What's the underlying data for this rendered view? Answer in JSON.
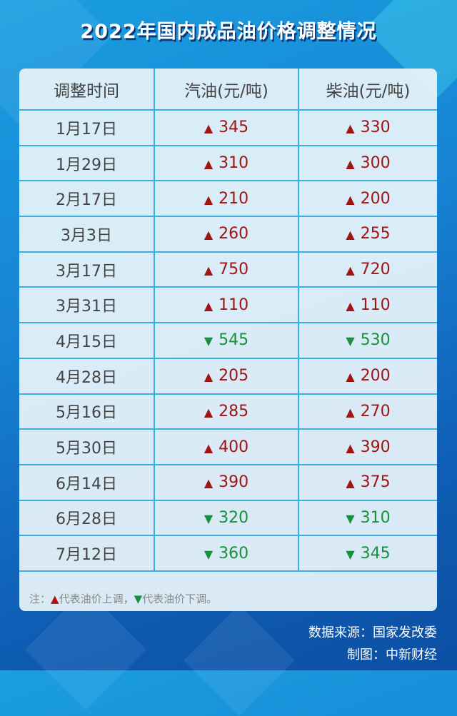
{
  "title": "2022年国内成品油价格调整情况",
  "colors": {
    "up": "#a11414",
    "down": "#17913d",
    "grid": "#38b1e0"
  },
  "chart_data": {
    "type": "table",
    "title": "2022年国内成品油价格调整情况",
    "columns": [
      "调整时间",
      "汽油(元/吨)",
      "柴油(元/吨)"
    ],
    "rows": [
      {
        "date": "1月17日",
        "gasoline": "345",
        "gasoline_dir": "up",
        "diesel": "330",
        "diesel_dir": "up"
      },
      {
        "date": "1月29日",
        "gasoline": "310",
        "gasoline_dir": "up",
        "diesel": "300",
        "diesel_dir": "up"
      },
      {
        "date": "2月17日",
        "gasoline": "210",
        "gasoline_dir": "up",
        "diesel": "200",
        "diesel_dir": "up"
      },
      {
        "date": "3月3日",
        "gasoline": "260",
        "gasoline_dir": "up",
        "diesel": "255",
        "diesel_dir": "up"
      },
      {
        "date": "3月17日",
        "gasoline": "750",
        "gasoline_dir": "up",
        "diesel": "720",
        "diesel_dir": "up"
      },
      {
        "date": "3月31日",
        "gasoline": "110",
        "gasoline_dir": "up",
        "diesel": "110",
        "diesel_dir": "up"
      },
      {
        "date": "4月15日",
        "gasoline": "545",
        "gasoline_dir": "down",
        "diesel": "530",
        "diesel_dir": "down"
      },
      {
        "date": "4月28日",
        "gasoline": "205",
        "gasoline_dir": "up",
        "diesel": "200",
        "diesel_dir": "up"
      },
      {
        "date": "5月16日",
        "gasoline": "285",
        "gasoline_dir": "up",
        "diesel": "270",
        "diesel_dir": "up"
      },
      {
        "date": "5月30日",
        "gasoline": "400",
        "gasoline_dir": "up",
        "diesel": "390",
        "diesel_dir": "up"
      },
      {
        "date": "6月14日",
        "gasoline": "390",
        "gasoline_dir": "up",
        "diesel": "375",
        "diesel_dir": "up"
      },
      {
        "date": "6月28日",
        "gasoline": "320",
        "gasoline_dir": "down",
        "diesel": "310",
        "diesel_dir": "down"
      },
      {
        "date": "7月12日",
        "gasoline": "360",
        "gasoline_dir": "down",
        "diesel": "345",
        "diesel_dir": "down"
      }
    ]
  },
  "note": {
    "prefix": "注：",
    "up_symbol": "▲",
    "up_text": "代表油价上调，",
    "down_symbol": "▼",
    "down_text": "代表油价下调。"
  },
  "source": "数据来源：国家发改委",
  "credit": "制图：中新财经"
}
